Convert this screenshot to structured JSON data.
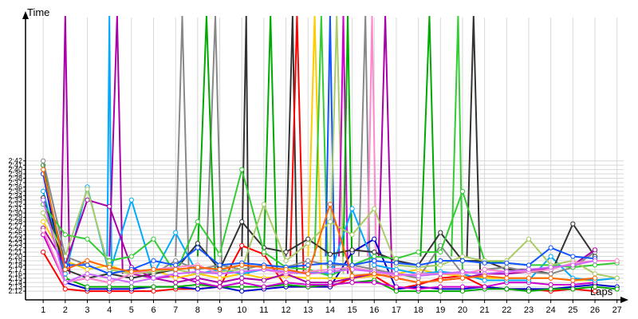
{
  "chart_data": {
    "type": "line",
    "title": "",
    "xlabel": "Laps",
    "ylabel": "Time",
    "x": [
      1,
      2,
      3,
      4,
      5,
      6,
      7,
      8,
      9,
      10,
      11,
      12,
      13,
      14,
      15,
      16,
      17,
      18,
      19,
      20,
      21,
      22,
      23,
      24,
      25,
      26,
      27
    ],
    "x_tick_labels": [
      "1",
      "2",
      "3",
      "4",
      "5",
      "6",
      "7",
      "8",
      "9",
      "10",
      "11",
      "12",
      "13",
      "14",
      "15",
      "16",
      "17",
      "18",
      "19",
      "20",
      "21",
      "22",
      "23",
      "24",
      "25",
      "26",
      "27"
    ],
    "xlim": [
      0.2,
      27.3
    ],
    "ylim": [
      2.1,
      2.75
    ],
    "y_tick_values": [
      2.12,
      2.13,
      2.14,
      2.15,
      2.16,
      2.17,
      2.18,
      2.19,
      2.2,
      2.21,
      2.22,
      2.23,
      2.24,
      2.25,
      2.26,
      2.27,
      2.28,
      2.29,
      2.3,
      2.31,
      2.32,
      2.33,
      2.34,
      2.35,
      2.36,
      2.37,
      2.38,
      2.39,
      2.4,
      2.41,
      2.42
    ],
    "y_tick_labels": [
      "2:12",
      "2:13",
      "2:14",
      "2:15",
      "2:16",
      "2:17",
      "2:18",
      "2:19",
      "2:20",
      "2:21",
      "2:22",
      "2:23",
      "2:24",
      "2:25",
      "2:26",
      "2:27",
      "2:28",
      "2:29",
      "2:30",
      "2:31",
      "2:32",
      "2:33",
      "2:34",
      "2:35",
      "2:36",
      "2:37",
      "2:38",
      "2:39",
      "2:40",
      "2:41",
      "2:42"
    ],
    "grid": true,
    "legend": "none",
    "series": [
      {
        "color": "#ff0000",
        "values": [
          2.21,
          2.125,
          2.12,
          2.12,
          2.12,
          2.12,
          2.125,
          2.125,
          2.13,
          2.225,
          2.205,
          2.13,
          2.13,
          2.13,
          2.15,
          2.155,
          2.125,
          2.135,
          2.15,
          2.155,
          2.13,
          2.125,
          2.125,
          2.12,
          2.125,
          2.12,
          null
        ]
      },
      {
        "color": "#0000cc",
        "values": [
          2.39,
          2.14,
          2.125,
          2.125,
          2.125,
          2.13,
          2.13,
          2.125,
          2.13,
          2.12,
          2.125,
          2.13,
          2.13,
          2.13,
          2.21,
          2.24,
          2.125,
          2.13,
          2.125,
          2.125,
          2.13,
          2.125,
          2.125,
          2.125,
          2.13,
          2.135,
          2.13
        ]
      },
      {
        "color": "#00aa00",
        "values": [
          2.41,
          2.15,
          2.13,
          2.13,
          2.13,
          2.13,
          2.13,
          2.135,
          2.13,
          2.13,
          2.13,
          2.135,
          2.13,
          2.135,
          2.14,
          2.145,
          2.12,
          2.12,
          2.12,
          2.12,
          2.125,
          2.125,
          2.12,
          2.125,
          2.125,
          2.13,
          2.125
        ]
      },
      {
        "color": "#cc00cc",
        "values": [
          2.25,
          2.14,
          2.15,
          2.14,
          2.16,
          2.15,
          2.155,
          2.14,
          2.13,
          2.14,
          2.13,
          2.14,
          2.135,
          2.135,
          2.14,
          2.14,
          2.13,
          2.125,
          2.13,
          2.13,
          2.13,
          2.14,
          2.14,
          2.135,
          2.135,
          2.14,
          null
        ]
      },
      {
        "color": "#ffcc00",
        "values": [
          2.28,
          2.19,
          2.17,
          2.18,
          2.16,
          2.17,
          2.15,
          2.16,
          2.15,
          2.16,
          2.15,
          2.155,
          2.15,
          2.15,
          2.15,
          2.155,
          2.16,
          2.17,
          2.16,
          2.155,
          2.15,
          2.15,
          2.15,
          2.15,
          2.145,
          2.145,
          2.15
        ]
      },
      {
        "color": "#00aaff",
        "values": [
          2.35,
          2.16,
          2.36,
          2.16,
          2.33,
          2.16,
          2.255,
          2.16,
          2.17,
          2.16,
          2.17,
          2.16,
          2.165,
          2.16,
          2.31,
          2.18,
          2.17,
          2.16,
          2.165,
          2.16,
          2.145,
          2.145,
          2.145,
          2.2,
          2.15,
          2.145,
          2.15
        ]
      },
      {
        "color": "#333333",
        "values": [
          2.335,
          2.17,
          2.15,
          2.16,
          2.15,
          2.16,
          2.17,
          2.23,
          2.17,
          2.28,
          2.22,
          2.21,
          2.24,
          2.205,
          2.215,
          2.21,
          2.19,
          2.18,
          2.255,
          2.19,
          2.19,
          2.17,
          2.17,
          2.16,
          2.275,
          2.2,
          null
        ]
      },
      {
        "color": "#888888",
        "values": [
          2.42,
          2.2,
          2.18,
          2.16,
          2.17,
          2.16,
          2.19,
          2.17,
          2.18,
          2.17,
          2.18,
          2.175,
          2.19,
          2.18,
          2.18,
          2.17,
          2.16,
          2.15,
          2.225,
          2.16,
          2.17,
          2.175,
          2.165,
          2.16,
          2.175,
          2.21,
          null
        ]
      },
      {
        "color": "#aa00aa",
        "values": [
          2.265,
          2.18,
          2.33,
          2.315,
          2.175,
          2.15,
          2.14,
          2.15,
          2.14,
          2.15,
          2.145,
          2.16,
          2.14,
          2.14,
          2.15,
          2.16,
          2.15,
          2.14,
          2.145,
          2.15,
          2.16,
          2.16,
          2.165,
          2.175,
          2.18,
          2.215,
          null
        ]
      },
      {
        "color": "#33cc33",
        "values": [
          2.32,
          2.25,
          2.24,
          2.19,
          2.2,
          2.24,
          2.16,
          2.28,
          2.205,
          2.4,
          2.21,
          2.175,
          2.17,
          2.155,
          2.18,
          2.2,
          2.195,
          2.21,
          2.21,
          2.35,
          2.19,
          2.185,
          2.18,
          2.18,
          2.175,
          2.18,
          2.185
        ]
      },
      {
        "color": "#aacc66",
        "values": [
          2.3,
          2.2,
          2.355,
          2.17,
          2.16,
          2.165,
          2.17,
          2.16,
          2.165,
          2.17,
          2.32,
          2.19,
          2.23,
          2.28,
          2.25,
          2.31,
          2.18,
          2.175,
          2.18,
          2.2,
          2.19,
          2.19,
          2.24,
          2.18,
          2.19,
          2.16,
          2.15
        ]
      },
      {
        "color": "#ff88cc",
        "values": [
          2.26,
          2.14,
          2.15,
          2.14,
          2.16,
          2.17,
          2.175,
          2.18,
          2.16,
          2.165,
          2.17,
          2.16,
          2.165,
          2.17,
          2.175,
          2.165,
          2.155,
          2.16,
          2.16,
          2.16,
          2.17,
          2.165,
          2.165,
          2.17,
          2.185,
          2.19,
          2.19
        ]
      },
      {
        "color": "#1155ff",
        "values": [
          2.39,
          2.18,
          2.18,
          2.16,
          2.17,
          2.19,
          2.18,
          2.22,
          2.18,
          2.185,
          2.18,
          2.175,
          2.18,
          2.185,
          2.18,
          2.19,
          2.185,
          2.18,
          2.19,
          2.19,
          2.185,
          2.185,
          2.18,
          2.22,
          2.2,
          2.195,
          null
        ]
      },
      {
        "color": "#cc66ff",
        "values": [
          2.33,
          2.14,
          2.16,
          2.15,
          2.14,
          2.15,
          2.16,
          2.165,
          2.16,
          2.165,
          2.17,
          2.165,
          2.16,
          2.165,
          2.17,
          2.165,
          2.16,
          2.155,
          2.16,
          2.165,
          2.16,
          2.165,
          2.17,
          2.175,
          2.18,
          2.19,
          null
        ]
      },
      {
        "color": "#ff6600",
        "values": [
          2.4,
          2.17,
          2.19,
          2.175,
          2.165,
          2.17,
          2.17,
          2.175,
          2.17,
          2.18,
          2.175,
          2.17,
          2.16,
          2.32,
          2.155,
          2.16,
          2.15,
          2.14,
          2.145,
          2.15,
          2.155,
          2.15,
          2.15,
          2.15,
          2.145,
          2.15,
          null
        ]
      }
    ],
    "spikes": [
      {
        "color": "#aa00aa",
        "x": [
          1.8,
          2,
          2.2
        ]
      },
      {
        "color": "#00aaff",
        "x": [
          3.9,
          4,
          4.1
        ]
      },
      {
        "color": "#aa00aa",
        "x": [
          4,
          4.35,
          4.6
        ]
      },
      {
        "color": "#888888",
        "x": [
          7,
          7.3,
          7.6
        ]
      },
      {
        "color": "#888888",
        "x": [
          8.4,
          8.8,
          9.1
        ]
      },
      {
        "color": "#00aa00",
        "x": [
          8,
          8.4,
          8.8
        ]
      },
      {
        "color": "#333333",
        "x": [
          10,
          10.2,
          10.3
        ]
      },
      {
        "color": "#00aa00",
        "x": [
          11,
          11.3,
          11.6
        ]
      },
      {
        "color": "#333333",
        "x": [
          12,
          12.3,
          12.5
        ]
      },
      {
        "color": "#ff0000",
        "x": [
          12.2,
          12.5,
          12.8
        ]
      },
      {
        "color": "#ffcc00",
        "x": [
          13,
          13.3,
          13.6
        ]
      },
      {
        "color": "#33cc33",
        "x": [
          13.3,
          13.6,
          13.9
        ]
      },
      {
        "color": "#1155ff",
        "x": [
          13.8,
          14,
          14.2
        ]
      },
      {
        "color": "#aacc66",
        "x": [
          14,
          14.3,
          14.6
        ]
      },
      {
        "color": "#cc00cc",
        "x": [
          14.4,
          14.6,
          14.8
        ]
      },
      {
        "color": "#00aa00",
        "x": [
          14.6,
          14.8,
          15
        ]
      },
      {
        "color": "#888888",
        "x": [
          15.3,
          15.6,
          15.8
        ]
      },
      {
        "color": "#ff88cc",
        "x": [
          15.7,
          15.9,
          16.1
        ]
      },
      {
        "color": "#aa00aa",
        "x": [
          16.2,
          16.5,
          16.8
        ]
      },
      {
        "color": "#00aa00",
        "x": [
          18.1,
          18.5,
          18.8
        ]
      },
      {
        "color": "#333333",
        "x": [
          20.2,
          20.5,
          20.8
        ]
      },
      {
        "color": "#33cc33",
        "x": [
          19.5,
          19.8,
          20
        ]
      }
    ]
  }
}
